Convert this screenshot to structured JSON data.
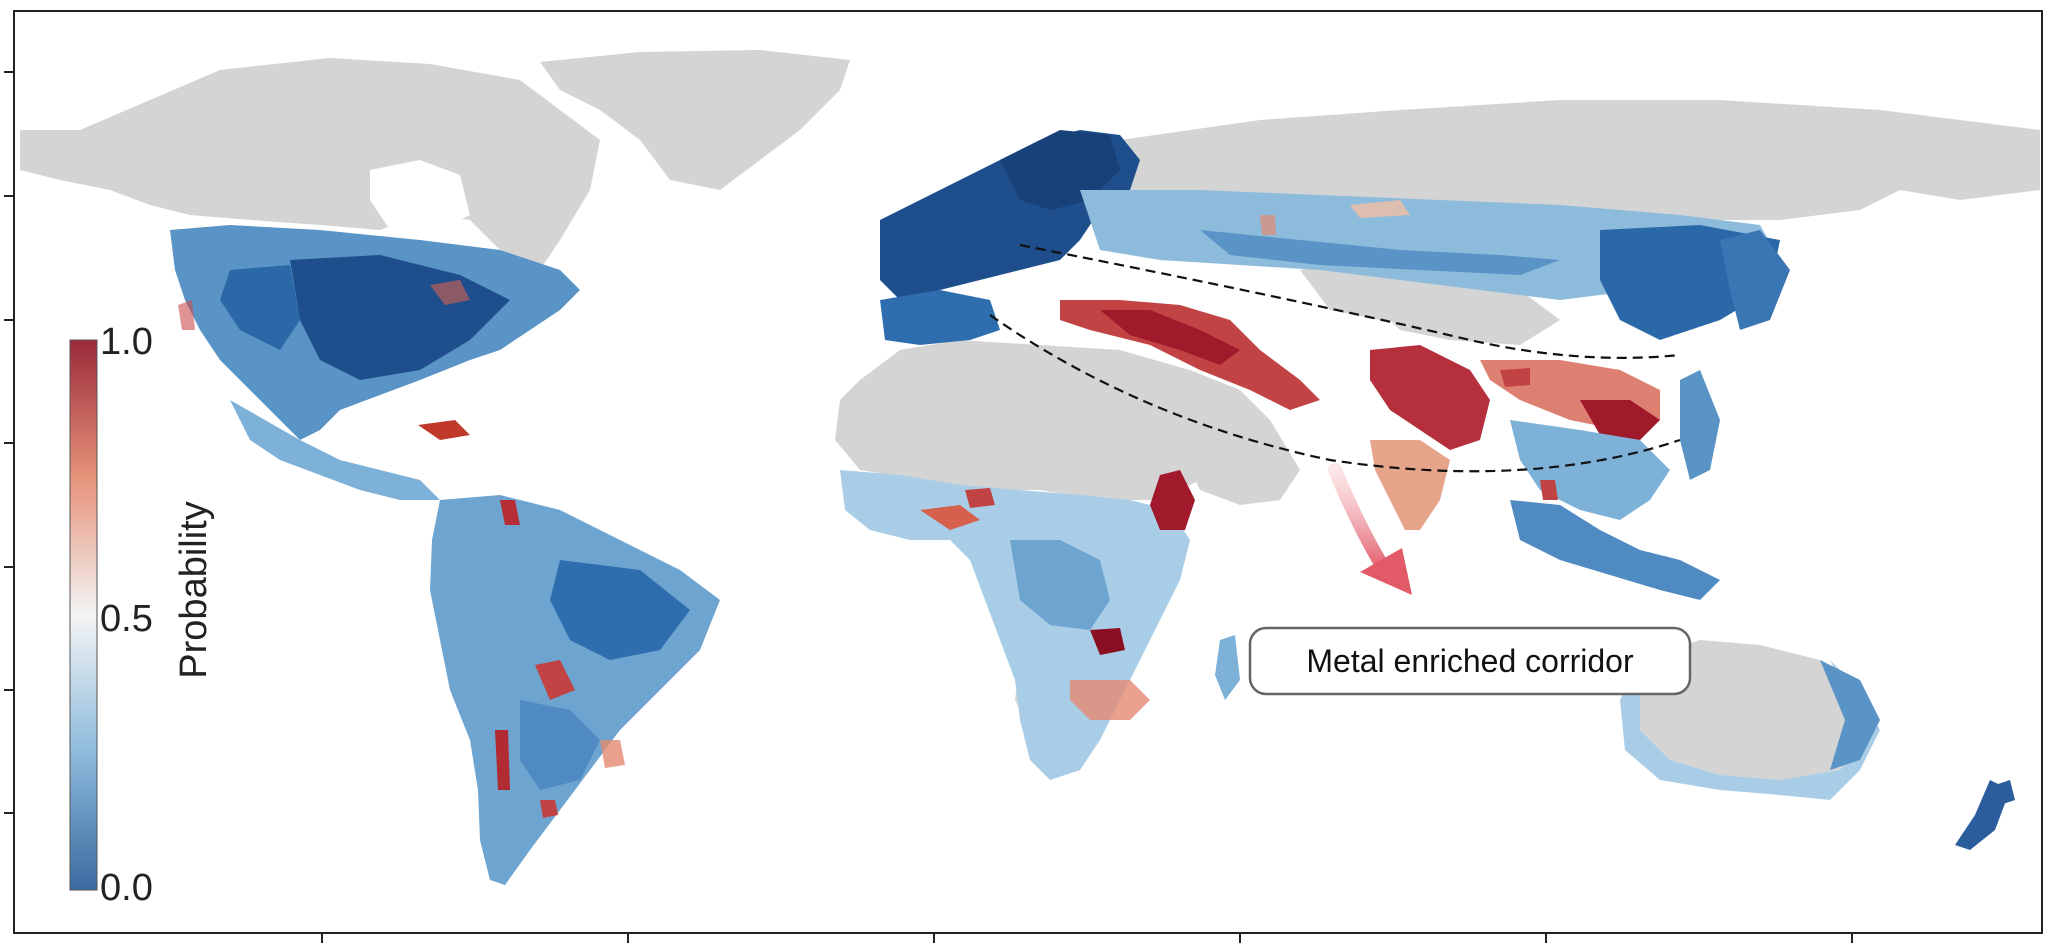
{
  "colorbar": {
    "title": "Probability",
    "tick_max": "1.0",
    "tick_mid": "0.5",
    "tick_min": "0.0",
    "range": [
      0.0,
      1.0
    ],
    "colormap": [
      "#2b5d9d",
      "#5e9ccc",
      "#a9cde6",
      "#f5f5f5",
      "#f3bfa4",
      "#d6604d",
      "#a01a2c"
    ]
  },
  "annotation": {
    "label": "Metal enriched corridor"
  },
  "colors": {
    "land_no_data": "#d4d4d4",
    "ocean": "#ffffff",
    "low_probability": "#1f4e8c",
    "high_probability": "#a01a2c",
    "arrow": "#e8707c",
    "corridor_line": "#111111"
  }
}
